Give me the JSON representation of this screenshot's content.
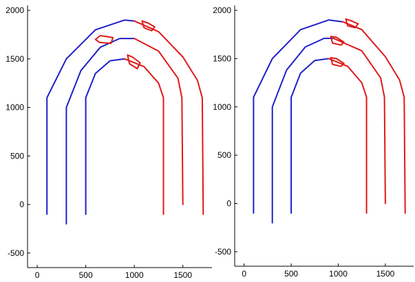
{
  "chart_data": [
    {
      "type": "line",
      "title": "",
      "xlabel": "",
      "ylabel": "",
      "xlim": [
        -100,
        1800
      ],
      "ylim": [
        -650,
        2050
      ],
      "xticks": [
        0,
        500,
        1000,
        1500
      ],
      "yticks": [
        -500,
        0,
        500,
        1000,
        1500,
        2000
      ],
      "grid": false,
      "series": [
        {
          "color": "#1f1fc8",
          "values": [
            [
              100,
              -100
            ],
            [
              100,
              1100
            ],
            [
              300,
              1500
            ],
            [
              600,
              1800
            ],
            [
              900,
              1900
            ],
            [
              1000,
              1890
            ]
          ]
        },
        {
          "color": "#e01818",
          "values": [
            [
              1000,
              1890
            ],
            [
              1250,
              1780
            ],
            [
              1500,
              1520
            ],
            [
              1650,
              1280
            ],
            [
              1700,
              1100
            ],
            [
              1710,
              -100
            ]
          ]
        },
        {
          "color": "#1f1fc8",
          "values": [
            [
              300,
              -200
            ],
            [
              300,
              1000
            ],
            [
              450,
              1380
            ],
            [
              650,
              1620
            ],
            [
              850,
              1710
            ],
            [
              1000,
              1710
            ]
          ]
        },
        {
          "color": "#e01818",
          "values": [
            [
              1000,
              1710
            ],
            [
              1250,
              1580
            ],
            [
              1450,
              1300
            ],
            [
              1490,
              1100
            ],
            [
              1500,
              0
            ]
          ]
        },
        {
          "color": "#1f1fc8",
          "values": [
            [
              500,
              -100
            ],
            [
              500,
              1100
            ],
            [
              600,
              1350
            ],
            [
              750,
              1480
            ],
            [
              900,
              1500
            ]
          ]
        },
        {
          "color": "#e01818",
          "values": [
            [
              900,
              1500
            ],
            [
              1100,
              1420
            ],
            [
              1250,
              1250
            ],
            [
              1300,
              1100
            ],
            [
              1300,
              -100
            ]
          ]
        },
        {
          "color": "#e01818",
          "values": [
            [
              1080,
              1890
            ],
            [
              1140,
              1870
            ],
            [
              1210,
              1830
            ],
            [
              1180,
              1790
            ],
            [
              1100,
              1820
            ],
            [
              1080,
              1890
            ]
          ]
        },
        {
          "color": "#e01818",
          "values": [
            [
              600,
              1700
            ],
            [
              650,
              1740
            ],
            [
              780,
              1720
            ],
            [
              760,
              1660
            ],
            [
              640,
              1670
            ],
            [
              600,
              1700
            ]
          ]
        },
        {
          "color": "#e01818",
          "values": [
            [
              930,
              1540
            ],
            [
              980,
              1520
            ],
            [
              1060,
              1460
            ],
            [
              1030,
              1400
            ],
            [
              950,
              1450
            ],
            [
              930,
              1540
            ]
          ]
        }
      ]
    },
    {
      "type": "line",
      "title": "",
      "xlabel": "",
      "ylabel": "",
      "xlim": [
        -100,
        1800
      ],
      "ylim": [
        -650,
        2050
      ],
      "xticks": [
        0,
        500,
        1000,
        1500
      ],
      "yticks": [
        -500,
        0,
        500,
        1000,
        1500,
        2000
      ],
      "grid": false,
      "series": [
        {
          "color": "#1f1fc8",
          "values": [
            [
              100,
              -100
            ],
            [
              100,
              1100
            ],
            [
              300,
              1500
            ],
            [
              600,
              1800
            ],
            [
              900,
              1900
            ],
            [
              1050,
              1880
            ]
          ]
        },
        {
          "color": "#e01818",
          "values": [
            [
              1050,
              1880
            ],
            [
              1250,
              1800
            ],
            [
              1500,
              1520
            ],
            [
              1650,
              1280
            ],
            [
              1700,
              1100
            ],
            [
              1710,
              -100
            ]
          ]
        },
        {
          "color": "#1f1fc8",
          "values": [
            [
              300,
              -200
            ],
            [
              300,
              1000
            ],
            [
              450,
              1380
            ],
            [
              650,
              1620
            ],
            [
              850,
              1710
            ],
            [
              950,
              1710
            ]
          ]
        },
        {
          "color": "#e01818",
          "values": [
            [
              950,
              1710
            ],
            [
              1250,
              1580
            ],
            [
              1450,
              1300
            ],
            [
              1490,
              1100
            ],
            [
              1500,
              0
            ]
          ]
        },
        {
          "color": "#1f1fc8",
          "values": [
            [
              500,
              -100
            ],
            [
              500,
              1100
            ],
            [
              600,
              1350
            ],
            [
              750,
              1480
            ],
            [
              900,
              1500
            ]
          ]
        },
        {
          "color": "#e01818",
          "values": [
            [
              900,
              1500
            ],
            [
              1100,
              1420
            ],
            [
              1250,
              1250
            ],
            [
              1300,
              1100
            ],
            [
              1300,
              -100
            ]
          ]
        },
        {
          "color": "#e01818",
          "values": [
            [
              1080,
              1910
            ],
            [
              1140,
              1890
            ],
            [
              1210,
              1860
            ],
            [
              1180,
              1820
            ],
            [
              1100,
              1840
            ],
            [
              1080,
              1910
            ]
          ]
        },
        {
          "color": "#e01818",
          "values": [
            [
              920,
              1730
            ],
            [
              980,
              1720
            ],
            [
              1060,
              1670
            ],
            [
              1030,
              1640
            ],
            [
              940,
              1660
            ],
            [
              920,
              1730
            ]
          ]
        },
        {
          "color": "#e01818",
          "values": [
            [
              920,
              1510
            ],
            [
              980,
              1500
            ],
            [
              1060,
              1450
            ],
            [
              1030,
              1420
            ],
            [
              940,
              1440
            ],
            [
              920,
              1510
            ]
          ]
        }
      ]
    }
  ]
}
